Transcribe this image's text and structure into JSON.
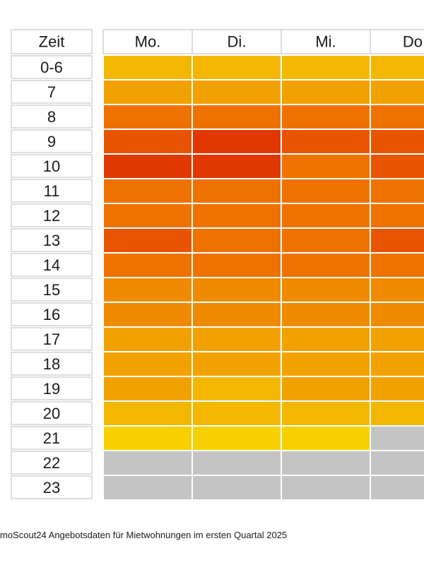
{
  "chart_data": {
    "type": "heatmap",
    "corner_label": "Zeit",
    "columns": [
      "Mo.",
      "Di.",
      "Mi.",
      "Do."
    ],
    "rows": [
      "0-6",
      "7",
      "8",
      "9",
      "10",
      "11",
      "12",
      "13",
      "14",
      "15",
      "16",
      "17",
      "18",
      "19",
      "20",
      "21",
      "22",
      "23"
    ],
    "levels": [
      [
        2,
        2,
        2,
        2
      ],
      [
        3,
        3,
        3,
        3
      ],
      [
        5,
        5,
        5,
        5
      ],
      [
        6,
        7,
        6,
        6
      ],
      [
        7,
        7,
        5,
        6
      ],
      [
        5,
        5,
        5,
        5
      ],
      [
        5,
        5,
        5,
        5
      ],
      [
        6,
        5,
        5,
        6
      ],
      [
        5,
        5,
        5,
        5
      ],
      [
        4,
        4,
        4,
        4
      ],
      [
        4,
        4,
        4,
        4
      ],
      [
        3,
        3,
        3,
        3
      ],
      [
        3,
        3,
        3,
        3
      ],
      [
        3,
        2,
        3,
        3
      ],
      [
        2,
        2,
        2,
        2
      ],
      [
        1,
        1,
        1,
        0
      ],
      [
        0,
        0,
        0,
        0
      ],
      [
        0,
        0,
        0,
        0
      ]
    ],
    "palette": [
      "#c4c4c4",
      "#f6d000",
      "#f4b700",
      "#f2a200",
      "#ee8b00",
      "#ef7200",
      "#e85400",
      "#e03800"
    ]
  },
  "footnote": "moScout24 Angebotsdaten für Mietwohnungen im ersten Quartal 2025"
}
